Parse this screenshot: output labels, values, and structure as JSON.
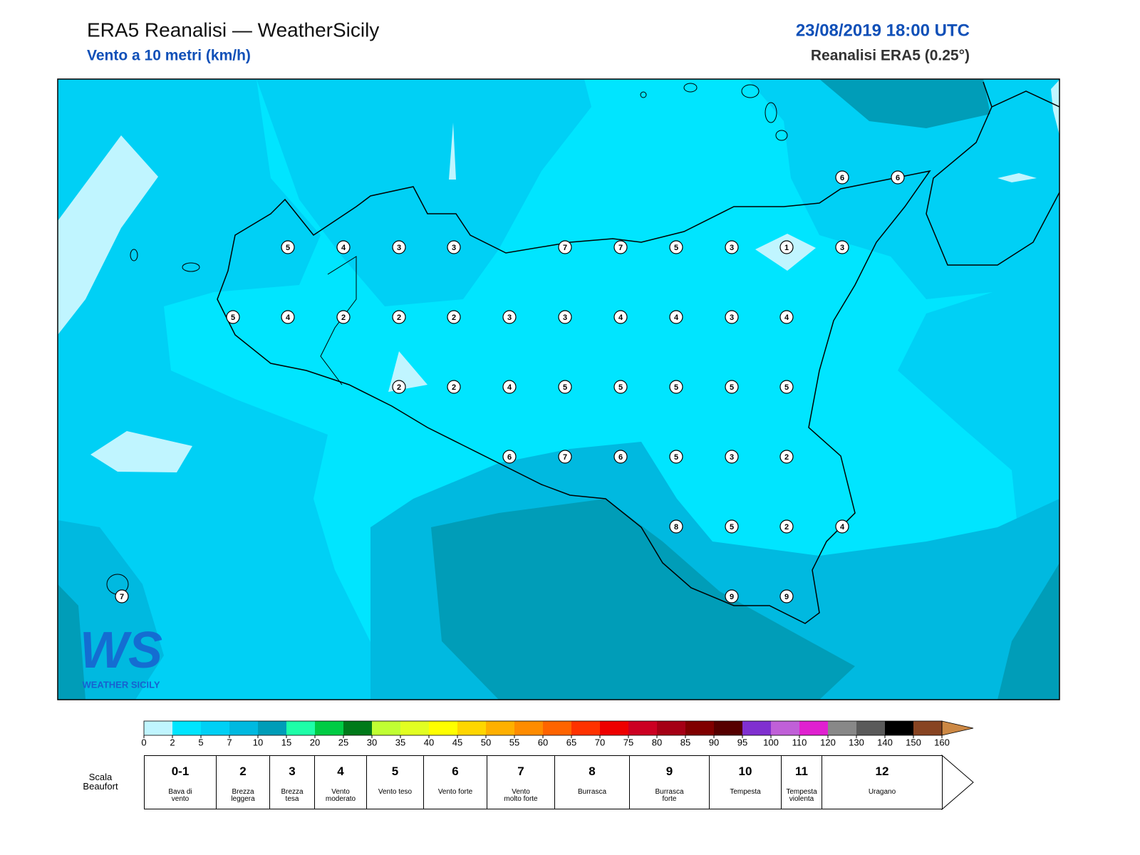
{
  "header": {
    "title": "ERA5 Reanalisi — WeatherSicily",
    "subtitle": "Vento a 10 metri (km/h)",
    "datetime": "23/08/2019 18:00 UTC",
    "source": "Reanalisi ERA5 (0.25°)"
  },
  "map": {
    "wind_beaufort": [
      6,
      6,
      5,
      4,
      3,
      3,
      7,
      7,
      5,
      3,
      1,
      3,
      5,
      4,
      2,
      2,
      2,
      3,
      3,
      4,
      4,
      3,
      4,
      2,
      2,
      4,
      5,
      5,
      5,
      5,
      5,
      6,
      7,
      6,
      5,
      3,
      2,
      8,
      5,
      2,
      4,
      7,
      9,
      9
    ],
    "logo": {
      "mark": "WS",
      "name": "WEATHER SICILY"
    }
  },
  "colorbar": {
    "ticks": [
      0,
      2,
      5,
      7,
      10,
      15,
      20,
      25,
      30,
      35,
      40,
      45,
      50,
      55,
      60,
      65,
      70,
      75,
      80,
      85,
      90,
      95,
      100,
      110,
      120,
      130,
      140,
      150,
      160
    ],
    "colors": [
      "#c0f5ff",
      "#00e5ff",
      "#00d0f5",
      "#00b9e0",
      "#009db8",
      "#1effa8",
      "#00cc44",
      "#007a1a",
      "#c0ff33",
      "#e2ff22",
      "#ffff00",
      "#ffd600",
      "#ffb000",
      "#ff8c00",
      "#ff6400",
      "#ff3200",
      "#ee0000",
      "#cc0022",
      "#a50015",
      "#800000",
      "#560000",
      "#8030d0",
      "#c060d8",
      "#e020d0",
      "#888888",
      "#5a5a5a",
      "#000000",
      "#884422"
    ],
    "over_color": "#cc8844"
  },
  "beaufort": {
    "label": "Scala Beaufort",
    "levels": [
      {
        "force": "0-1",
        "desc": "Bava di vento"
      },
      {
        "force": 2,
        "desc": "Brezza leggera"
      },
      {
        "force": 3,
        "desc": "Brezza tesa"
      },
      {
        "force": 4,
        "desc": "Vento moderato"
      },
      {
        "force": 5,
        "desc": "Vento teso"
      },
      {
        "force": 6,
        "desc": "Vento forte"
      },
      {
        "force": 7,
        "desc": "Vento molto forte"
      },
      {
        "force": 8,
        "desc": "Burrasca"
      },
      {
        "force": 9,
        "desc": "Burrasca forte"
      },
      {
        "force": 10,
        "desc": "Tempesta"
      },
      {
        "force": 11,
        "desc": "Tempesta violenta"
      },
      {
        "force": 12,
        "desc": "Uragano"
      }
    ]
  }
}
